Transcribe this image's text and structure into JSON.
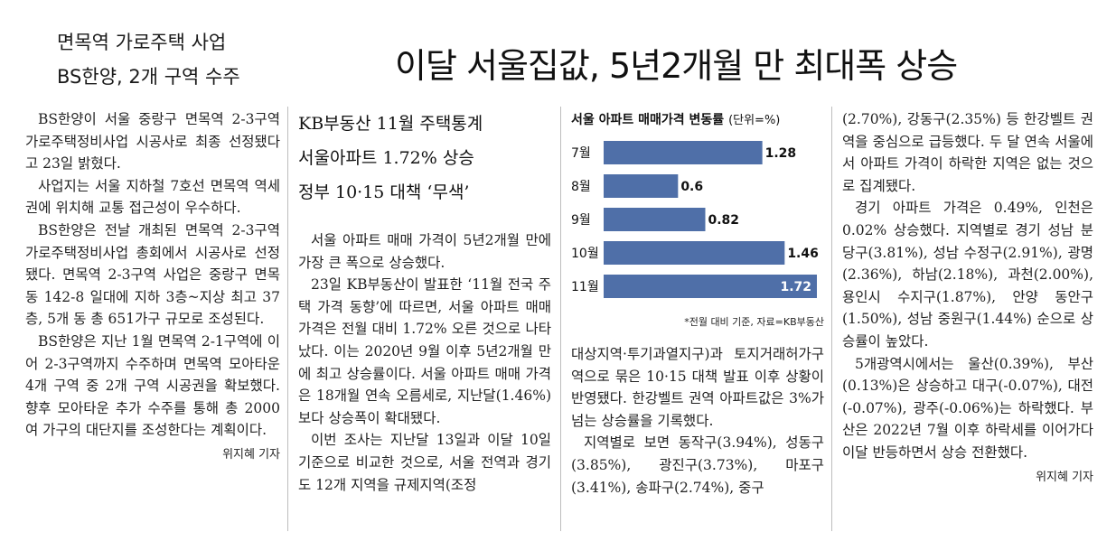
{
  "side_article": {
    "headline_line1": "면목역 가로주택 사업",
    "headline_line2": "BS한양, 2개 구역 수주",
    "paragraphs": [
      "BS한양이 서울 중랑구 면목역 2-3구역 가로주택정비사업 시공사로 최종 선정됐다고 23일 밝혔다.",
      "사업지는 서울 지하철 7호선 면목역 역세권에 위치해 교통 접근성이 우수하다.",
      "BS한양은 전날 개최된 면목역 2-3구역 가로주택정비사업 총회에서 시공사로 선정됐다. 면목역 2-3구역 사업은 중랑구 면목동 142-8 일대에 지하 3층~지상 최고 37층, 5개 동 총 651가구 규모로 조성된다.",
      "BS한양은 지난 1월 면목역 2-1구역에 이어 2-3구역까지 수주하며 면목역 모아타운 4개 구역 중 2개 구역 시공권을 확보했다. 향후 모아타운 추가 수주를 통해 총 2000여 가구의 대단지를 조성한다는 계획이다."
    ],
    "byline": "위지혜 기자"
  },
  "main_article": {
    "headline": "이달 서울집값, 5년2개월 만 최대폭 상승",
    "subheads": [
      "KB부동산 11월 주택통계",
      "서울아파트 1.72% 상승",
      "정부 10·15 대책 ‘무색’"
    ],
    "col1_paragraphs": [
      "서울 아파트 매매 가격이 5년2개월 만에 가장 큰 폭으로 상승했다.",
      "23일 KB부동산이 발표한 ‘11월 전국 주택 가격 동향’에 따르면, 서울 아파트 매매 가격은 전월 대비 1.72% 오른 것으로 나타났다. 이는 2020년 9월 이후 5년2개월 만에 최고 상승률이다. 서울 아파트 매매 가격은 18개월 연속 오름세로, 지난달(1.46%)보다 상승폭이 확대됐다.",
      "이번 조사는 지난달 13일과 이달 10일 기준으로 비교한 것으로, 서울 전역과 경기도 12개 지역을 규제지역(조정"
    ],
    "col2_paragraphs": [
      "대상지역·투기과열지구)과 토지거래허가구역으로 묶은 10·15 대책 발표 이후 상황이 반영됐다. 한강벨트 권역 아파트값은 3%가 넘는 상승률을 기록했다.",
      "지역별로 보면 동작구(3.94%), 성동구(3.85%), 광진구(3.73%), 마포구(3.41%), 송파구(2.74%), 중구"
    ],
    "col3_paragraphs": [
      "(2.70%), 강동구(2.35%) 등 한강벨트 권역을 중심으로 급등했다. 두 달 연속 서울에서 아파트 가격이 하락한 지역은 없는 것으로 집계됐다.",
      "경기 아파트 가격은 0.49%, 인천은 0.02% 상승했다. 지역별로 경기 성남 분당구(3.81%), 성남 수정구(2.91%), 광명(2.36%), 하남(2.18%), 과천(2.00%), 용인시 수지구(1.87%), 안양 동안구(1.50%), 성남 중원구(1.44%) 순으로 상승률이 높았다.",
      "5개광역시에서는 울산(0.39%), 부산(0.13%)은 상승하고 대구(-0.07%), 대전(-0.07%), 광주(-0.06%)는 하락했다. 부산은 2022년 7월 이후 하락세를 이어가다 이달 반등하면서 상승 전환했다."
    ],
    "byline": "위지혜 기자"
  },
  "chart": {
    "title": "서울 아파트 매매가격 변동률",
    "unit": "(단위=%)",
    "note": "*전월 대비 기준, 자료=KB부동산"
  },
  "chart_data": {
    "type": "bar",
    "orientation": "horizontal",
    "title": "서울 아파트 매매가격 변동률",
    "categories": [
      "7월",
      "8월",
      "9월",
      "10월",
      "11월"
    ],
    "values": [
      1.28,
      0.6,
      0.82,
      1.46,
      1.72
    ],
    "value_labels": [
      "1.28",
      "0.6",
      "0.82",
      "1.46",
      "1.72"
    ],
    "xlim": [
      0,
      1.72
    ],
    "grid": false,
    "colors": {
      "bar": "#4f6fa8",
      "highlight_label": "#ffffff"
    }
  }
}
